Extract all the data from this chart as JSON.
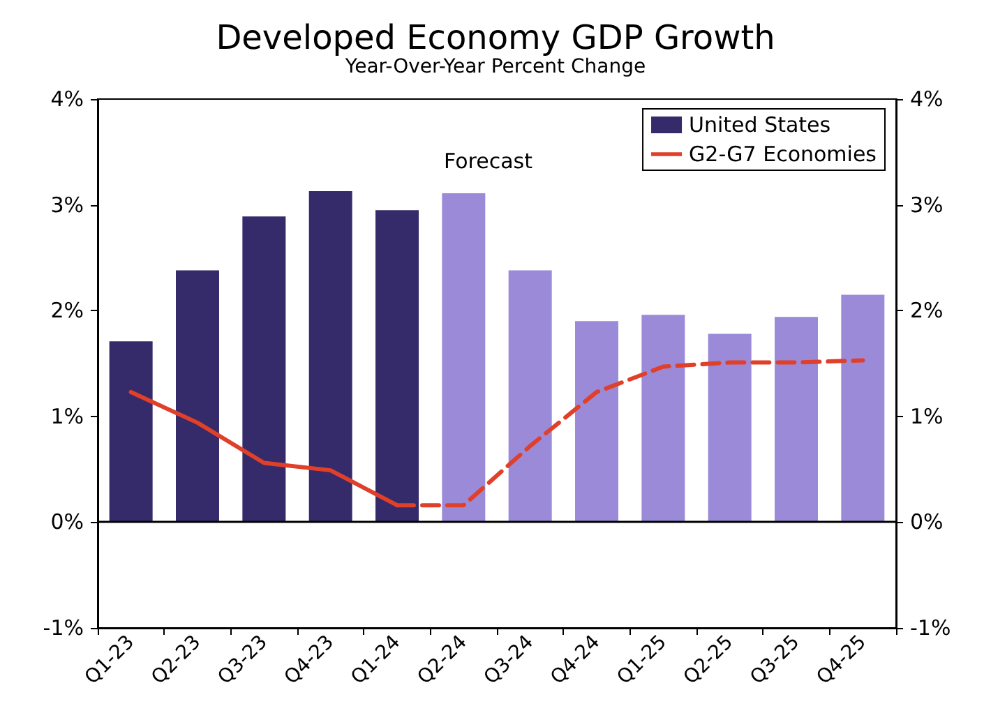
{
  "chart_data": {
    "type": "bar",
    "title": "Developed Economy GDP Growth",
    "subtitle": "Year-Over-Year Percent Change",
    "categories": [
      "Q1-23",
      "Q2-23",
      "Q3-23",
      "Q4-23",
      "Q1-24",
      "Q2-24",
      "Q3-24",
      "Q4-24",
      "Q1-25",
      "Q2-25",
      "Q3-25",
      "Q4-25"
    ],
    "series": [
      {
        "name": "United States",
        "color": "#352a6a",
        "colors": [
          "#352a6a",
          "#352a6a",
          "#352a6a",
          "#352a6a",
          "#352a6a",
          "#9b8ad8",
          "#9b8ad8",
          "#9b8ad8",
          "#9b8ad8",
          "#9b8ad8",
          "#9b8ad8",
          "#9b8ad8"
        ],
        "values": [
          1.71,
          2.38,
          2.89,
          3.13,
          2.95,
          3.11,
          2.38,
          1.9,
          1.96,
          1.78,
          1.94,
          2.15
        ]
      },
      {
        "name": "G2-G7 Economies",
        "type": "line",
        "color": "#e0402a",
        "line_style": "solid",
        "values": [
          1.23,
          0.94,
          0.56,
          0.49,
          0.16,
          null,
          null,
          null,
          null,
          null,
          null,
          null
        ]
      },
      {
        "type": "line",
        "color": "#e0402a",
        "line_style": "dashed",
        "values": [
          null,
          null,
          null,
          null,
          0.16,
          0.16,
          0.72,
          1.23,
          1.47,
          1.51,
          1.51,
          1.53
        ]
      }
    ],
    "annotations": [
      "Forecast"
    ],
    "ref_lines": [
      {
        "axis": "y",
        "value": 0,
        "color": "#000000"
      }
    ],
    "ylim": [
      -1,
      4
    ],
    "yticks": [
      {
        "value": -1,
        "label": "-1%"
      },
      {
        "value": 0,
        "label": "0%"
      },
      {
        "value": 1,
        "label": "1%"
      },
      {
        "value": 2,
        "label": "2%"
      },
      {
        "value": 3,
        "label": "3%"
      },
      {
        "value": 4,
        "label": "4%"
      }
    ],
    "y2lim": [
      -1,
      4
    ],
    "y2ticks": [
      {
        "value": -1,
        "label": "-1%"
      },
      {
        "value": 0,
        "label": "0%"
      },
      {
        "value": 1,
        "label": "1%"
      },
      {
        "value": 2,
        "label": "2%"
      },
      {
        "value": 3,
        "label": "3%"
      },
      {
        "value": 4,
        "label": "4%"
      }
    ],
    "legend": "top right",
    "marker": "none"
  }
}
